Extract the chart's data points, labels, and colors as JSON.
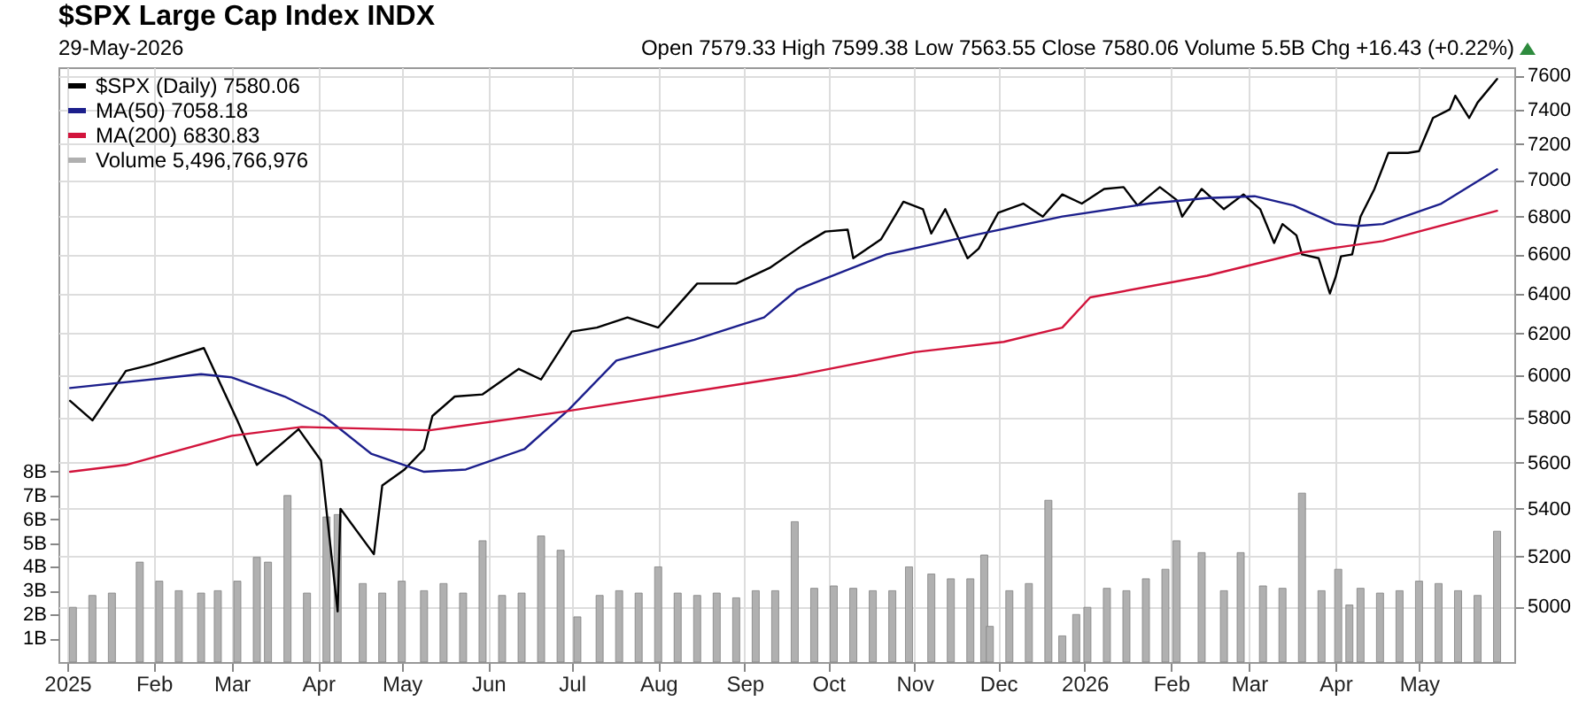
{
  "chart_data": {
    "type": "line",
    "title": "$SPX Large Cap Index  INDX",
    "subtitle": "29-May-2026",
    "annotations": [
      "Open 7579.33  High 7599.38  Low 7563.55  Close 7580.06  Volume 5.5B  Chg +16.43 (+0.22%)"
    ],
    "series": [
      {
        "name": "$SPX (Daily) 7580.06",
        "color": "#000000",
        "x": [
          "2025-01-02",
          "2025-01-10",
          "2025-01-22",
          "2025-01-31",
          "2025-02-19",
          "2025-03-03",
          "2025-03-10",
          "2025-03-25",
          "2025-04-02",
          "2025-04-08",
          "2025-04-09",
          "2025-04-21",
          "2025-04-24",
          "2025-05-02",
          "2025-05-09",
          "2025-05-12",
          "2025-05-20",
          "2025-05-30",
          "2025-06-12",
          "2025-06-20",
          "2025-07-01",
          "2025-07-10",
          "2025-07-21",
          "2025-08-01",
          "2025-08-15",
          "2025-08-29",
          "2025-09-10",
          "2025-09-22",
          "2025-09-30",
          "2025-10-08",
          "2025-10-10",
          "2025-10-20",
          "2025-10-28",
          "2025-11-04",
          "2025-11-07",
          "2025-11-12",
          "2025-11-20",
          "2025-11-24",
          "2025-12-01",
          "2025-12-10",
          "2025-12-17",
          "2025-12-24",
          "2025-12-31",
          "2026-01-08",
          "2026-01-15",
          "2026-01-20",
          "2026-01-28",
          "2026-02-03",
          "2026-02-05",
          "2026-02-12",
          "2026-02-20",
          "2026-02-27",
          "2026-03-05",
          "2026-03-10",
          "2026-03-13",
          "2026-03-18",
          "2026-03-20",
          "2026-03-26",
          "2026-03-30",
          "2026-04-01",
          "2026-04-03",
          "2026-04-07",
          "2026-04-10",
          "2026-04-15",
          "2026-04-20",
          "2026-04-27",
          "2026-05-01",
          "2026-05-06",
          "2026-05-12",
          "2026-05-14",
          "2026-05-19",
          "2026-05-22",
          "2026-05-29"
        ],
        "values": [
          5880,
          5790,
          6020,
          6050,
          6130,
          5790,
          5590,
          5750,
          5610,
          4980,
          5400,
          5210,
          5500,
          5570,
          5660,
          5810,
          5900,
          5910,
          6030,
          5980,
          6210,
          6230,
          6280,
          6230,
          6450,
          6450,
          6530,
          6650,
          6720,
          6730,
          6580,
          6680,
          6880,
          6840,
          6710,
          6840,
          6580,
          6630,
          6820,
          6870,
          6800,
          6920,
          6870,
          6950,
          6960,
          6860,
          6960,
          6890,
          6800,
          6950,
          6840,
          6920,
          6840,
          6660,
          6760,
          6700,
          6600,
          6580,
          6400,
          6480,
          6590,
          6600,
          6800,
          6950,
          7150,
          7150,
          7160,
          7350,
          7400,
          7480,
          7350,
          7440,
          7580.06
        ]
      },
      {
        "name": "MA(50) 7058.18",
        "color": "#1c1f8c",
        "x": [
          "2025-01-02",
          "2025-02-18",
          "2025-03-01",
          "2025-03-20",
          "2025-04-03",
          "2025-04-20",
          "2025-05-09",
          "2025-05-24",
          "2025-06-14",
          "2025-06-30",
          "2025-07-17",
          "2025-08-14",
          "2025-09-08",
          "2025-09-20",
          "2025-10-22",
          "2025-11-22",
          "2025-12-24",
          "2026-01-24",
          "2026-02-14",
          "2026-03-03",
          "2026-03-17",
          "2026-04-01",
          "2026-04-09",
          "2026-04-18",
          "2026-05-09",
          "2026-05-29"
        ],
        "values": [
          5940,
          6005,
          5990,
          5900,
          5810,
          5640,
          5560,
          5570,
          5660,
          5840,
          6070,
          6170,
          6280,
          6420,
          6600,
          6700,
          6800,
          6870,
          6900,
          6910,
          6860,
          6760,
          6750,
          6760,
          6870,
          7058.18
        ]
      },
      {
        "name": "MA(200) 6830.83",
        "color": "#d2143c",
        "x": [
          "2025-01-02",
          "2025-01-22",
          "2025-03-01",
          "2025-03-26",
          "2025-05-11",
          "2025-06-28",
          "2025-09-20",
          "2025-11-01",
          "2025-12-03",
          "2025-12-24",
          "2026-01-03",
          "2026-02-14",
          "2026-03-20",
          "2026-04-18",
          "2026-05-29"
        ],
        "values": [
          5560,
          5590,
          5720,
          5760,
          5745,
          5830,
          6000,
          6110,
          6160,
          6230,
          6380,
          6490,
          6610,
          6670,
          6830.83
        ]
      },
      {
        "name": "Volume 5,496,766,976",
        "type": "bar",
        "axis": "y2",
        "color": "#b0b0b0",
        "x": [
          "2025-01-03",
          "2025-01-10",
          "2025-01-17",
          "2025-01-27",
          "2025-02-03",
          "2025-02-10",
          "2025-02-18",
          "2025-02-24",
          "2025-03-03",
          "2025-03-10",
          "2025-03-14",
          "2025-03-21",
          "2025-03-28",
          "2025-04-04",
          "2025-04-08",
          "2025-04-17",
          "2025-04-24",
          "2025-05-01",
          "2025-05-09",
          "2025-05-16",
          "2025-05-23",
          "2025-05-30",
          "2025-06-06",
          "2025-06-13",
          "2025-06-20",
          "2025-06-27",
          "2025-07-03",
          "2025-07-11",
          "2025-07-18",
          "2025-07-25",
          "2025-08-01",
          "2025-08-08",
          "2025-08-15",
          "2025-08-22",
          "2025-08-29",
          "2025-09-05",
          "2025-09-12",
          "2025-09-19",
          "2025-09-26",
          "2025-10-03",
          "2025-10-10",
          "2025-10-17",
          "2025-10-24",
          "2025-10-30",
          "2025-11-07",
          "2025-11-14",
          "2025-11-21",
          "2025-11-26",
          "2025-11-28",
          "2025-12-05",
          "2025-12-12",
          "2025-12-19",
          "2025-12-24",
          "2025-12-29",
          "2026-01-02",
          "2026-01-09",
          "2026-01-16",
          "2026-01-23",
          "2026-01-30",
          "2026-02-03",
          "2026-02-12",
          "2026-02-20",
          "2026-02-26",
          "2026-03-06",
          "2026-03-13",
          "2026-03-20",
          "2026-03-27",
          "2026-04-02",
          "2026-04-06",
          "2026-04-10",
          "2026-04-17",
          "2026-04-24",
          "2026-05-01",
          "2026-05-08",
          "2026-05-15",
          "2026-05-22",
          "2026-05-29"
        ],
        "values": [
          2.3,
          2.8,
          2.9,
          4.2,
          3.4,
          3.0,
          2.9,
          3.0,
          3.4,
          4.4,
          4.2,
          7.0,
          2.9,
          6.1,
          6.2,
          3.3,
          2.9,
          3.4,
          3.0,
          3.3,
          2.9,
          5.1,
          2.8,
          2.9,
          5.3,
          4.7,
          1.9,
          2.8,
          3.0,
          2.9,
          4.0,
          2.9,
          2.8,
          2.9,
          2.7,
          3.0,
          3.0,
          5.9,
          3.1,
          3.2,
          3.1,
          3.0,
          3.0,
          4.0,
          3.7,
          3.5,
          3.5,
          4.5,
          1.5,
          3.0,
          3.3,
          6.8,
          1.1,
          2.0,
          2.3,
          3.1,
          3.0,
          3.5,
          3.9,
          5.1,
          4.6,
          3.0,
          4.6,
          3.2,
          3.1,
          7.1,
          3.0,
          3.9,
          2.4,
          3.1,
          2.9,
          3.0,
          3.4,
          3.3,
          3.0,
          2.8,
          5.5
        ]
      }
    ],
    "xlim": [
      "2025-01-01",
      "2026-06-01"
    ],
    "xticks": [
      {
        "value": "2025-01-01",
        "label": "2025"
      },
      {
        "value": "2025-02-01",
        "label": "Feb"
      },
      {
        "value": "2025-03-01",
        "label": "Mar"
      },
      {
        "value": "2025-04-01",
        "label": "Apr"
      },
      {
        "value": "2025-05-01",
        "label": "May"
      },
      {
        "value": "2025-06-01",
        "label": "Jun"
      },
      {
        "value": "2025-07-01",
        "label": "Jul"
      },
      {
        "value": "2025-08-01",
        "label": "Aug"
      },
      {
        "value": "2025-09-01",
        "label": "Sep"
      },
      {
        "value": "2025-10-01",
        "label": "Oct"
      },
      {
        "value": "2025-11-01",
        "label": "Nov"
      },
      {
        "value": "2025-12-01",
        "label": "Dec"
      },
      {
        "value": "2026-01-01",
        "label": "2026"
      },
      {
        "value": "2026-02-01",
        "label": "Feb"
      },
      {
        "value": "2026-03-01",
        "label": "Mar"
      },
      {
        "value": "2026-04-01",
        "label": "Apr"
      },
      {
        "value": "2026-05-01",
        "label": "May"
      }
    ],
    "ylim": [
      4785,
      7650
    ],
    "yticks": [
      5000,
      5200,
      5400,
      5600,
      5800,
      6000,
      6200,
      6400,
      6600,
      6800,
      7000,
      7200,
      7400,
      7600
    ],
    "log": "y",
    "y2lim": [
      0,
      25
    ],
    "y2ticks": [
      {
        "value": 1,
        "label": "1B"
      },
      {
        "value": 2,
        "label": "2B"
      },
      {
        "value": 3,
        "label": "3B"
      },
      {
        "value": 4,
        "label": "4B"
      },
      {
        "value": 5,
        "label": "5B"
      },
      {
        "value": 6,
        "label": "6B"
      },
      {
        "value": 7,
        "label": "7B"
      },
      {
        "value": 8,
        "label": "8B"
      }
    ],
    "grid": true,
    "legend": "top left"
  }
}
